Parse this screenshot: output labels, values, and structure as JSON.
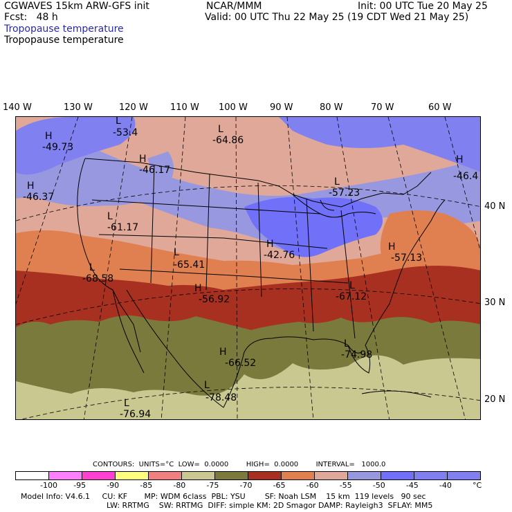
{
  "header": {
    "model": "CGWAVES 15km ARW-GFS init",
    "fcst": "Fcst:   48 h",
    "org": "NCAR/MMM",
    "init": "Init: 00 UTC Tue 20 May 25",
    "valid": "Valid: 00 UTC Thu 22 May 25 (19 CDT Wed 21 May 25)",
    "field_blue": "Tropopause temperature",
    "field_black": "Tropopause temperature"
  },
  "lon_labels": [
    "140 W",
    "130 W",
    "120 W",
    "110 W",
    "100 W",
    "90 W",
    "80 W",
    "70 W",
    "60 W"
  ],
  "lat_labels": [
    "40 N",
    "30 N",
    "20 N"
  ],
  "highs_lows": [
    {
      "id": "h1",
      "type": "H",
      "value": "-49.73"
    },
    {
      "id": "l1",
      "type": "L",
      "value": "-53.4"
    },
    {
      "id": "h2",
      "type": "H",
      "value": "-46.17"
    },
    {
      "id": "l2",
      "type": "L",
      "value": "-64.86"
    },
    {
      "id": "h3",
      "type": "H",
      "value": "-46.37"
    },
    {
      "id": "l3",
      "type": "L",
      "value": "-57.23"
    },
    {
      "id": "h4",
      "type": "H",
      "value": "-46.4"
    },
    {
      "id": "l4",
      "type": "L",
      "value": "-61.17"
    },
    {
      "id": "h5",
      "type": "H",
      "value": "-42.76"
    },
    {
      "id": "l5",
      "type": "L",
      "value": "-65.41"
    },
    {
      "id": "h6",
      "type": "H",
      "value": "-57.13"
    },
    {
      "id": "l6",
      "type": "L",
      "value": "-68.58"
    },
    {
      "id": "h7",
      "type": "H",
      "value": "-56.92"
    },
    {
      "id": "l7",
      "type": "L",
      "value": "-67.12"
    },
    {
      "id": "h8",
      "type": "H",
      "value": "-66.52"
    },
    {
      "id": "l8",
      "type": "L",
      "value": "-74.98"
    },
    {
      "id": "l9",
      "type": "L",
      "value": "-78.48"
    },
    {
      "id": "l10",
      "type": "L",
      "value": "-76.94"
    }
  ],
  "contours": {
    "text": "CONTOURS:  UNITS=°C  LOW=  0.0000        HIGH=  0.0000        INTERVAL=   1000.0"
  },
  "legend": {
    "colors": [
      "#ffffff",
      "#ff7fff",
      "#ff40d0",
      "#ffff80",
      "#f08080",
      "#c8c890",
      "#7a7a3c",
      "#a83020",
      "#e08050",
      "#e0a898",
      "#9898e0",
      "#7070f8",
      "#8080f0"
    ],
    "ticks": [
      "-100",
      "-95",
      "-90",
      "-85",
      "-80",
      "-75",
      "-70",
      "-65",
      "-60",
      "-55",
      "-50",
      "-45",
      "-40",
      "°C"
    ]
  },
  "footer": {
    "line1": "Model Info: V4.6.1     CU: KF       MP: WDM 6class  PBL: YSU        SF: Noah LSM    15 km  119 levels   90 sec",
    "line2": "LW: RRTMG    SW: RRTMG  DIFF: simple KM: 2D Smagor DAMP: Rayleigh3  SFLAY: MM5"
  }
}
